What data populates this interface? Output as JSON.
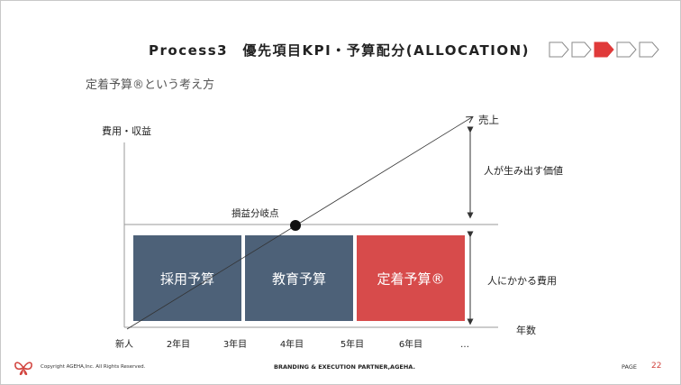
{
  "header": {
    "title": "Process3　優先項目KPI・予算配分(ALLOCATION)",
    "progress": {
      "total_steps": 5,
      "active_step": 3,
      "active_color": "#e03a3a"
    }
  },
  "subtitle": "定着予算®という考え方",
  "diagram": {
    "y_axis_label": "費用・収益",
    "x_axis_label": "年数",
    "sales_label": "売上",
    "value_label": "人が生み出す価値",
    "cost_label": "人にかかる費用",
    "breakeven_label": "損益分岐点",
    "x_ticks": [
      "新人",
      "2年目",
      "3年目",
      "4年目",
      "5年目",
      "6年目",
      "…"
    ],
    "blocks": [
      {
        "label": "採用予算",
        "color": "#4d6178"
      },
      {
        "label": "教育予算",
        "color": "#4d6178"
      },
      {
        "label": "定着予算®",
        "color": "#d74b4b"
      }
    ]
  },
  "footer": {
    "copyright": "Copyright AGEHA,Inc. All Rights Reserved.",
    "partner": "BRANDING & EXECUTION PARTNER,AGEHA.",
    "page_label": "PAGE",
    "page_number": "22",
    "logo_icon": "ageha-logo-icon"
  }
}
